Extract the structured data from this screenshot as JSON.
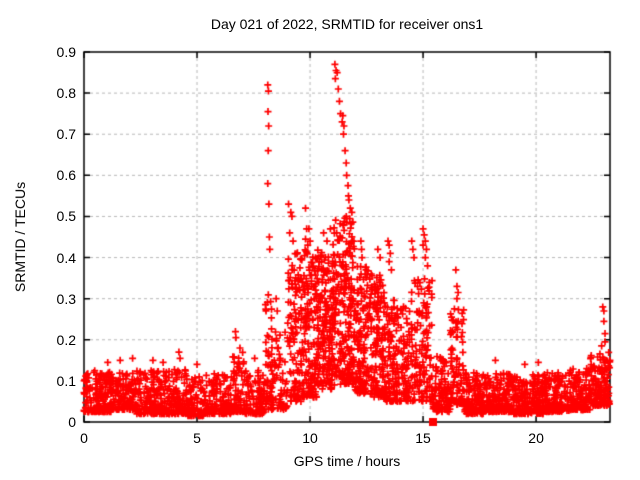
{
  "chart_data": {
    "type": "scatter",
    "title": "Day 021 of 2022, SRMTID for receiver ons1",
    "xlabel": "GPS time / hours",
    "ylabel": "SRMTID / TECUs",
    "xlim": [
      0,
      23.27
    ],
    "ylim": [
      0,
      0.9
    ],
    "xtick_values": [
      0,
      5,
      10,
      15,
      20
    ],
    "xtick_labels": [
      "0",
      "5",
      "10",
      "15",
      "20"
    ],
    "ytick_values": [
      0,
      0.1,
      0.2,
      0.3,
      0.4,
      0.5,
      0.6,
      0.7,
      0.8,
      0.9
    ],
    "ytick_labels": [
      "0",
      "0.1",
      "0.2",
      "0.3",
      "0.4",
      "0.5",
      "0.6",
      "0.7",
      "0.8",
      "0.9"
    ],
    "grid": {
      "on": true,
      "color": "#b8b8b8",
      "dash": [
        3,
        3
      ]
    },
    "legend": {
      "visible": false
    },
    "marker": {
      "shape": "plus",
      "color": "#ff0000",
      "size": 7,
      "stroke": 1.7
    },
    "border_color": "#000000",
    "background": "#ffffff",
    "point_generation": {
      "seed": 12345,
      "commentless_model": "x uniform in [x0,x1]; y = lo + (hi-lo)*u^k",
      "segments": [
        {
          "x0": 0.0,
          "x1": 1.2,
          "n": 170,
          "lo": 0.025,
          "hi": 0.125,
          "k": 2.0
        },
        {
          "x0": 1.2,
          "x1": 2.3,
          "n": 150,
          "lo": 0.03,
          "hi": 0.12,
          "k": 2.0
        },
        {
          "x0": 2.3,
          "x1": 3.5,
          "n": 150,
          "lo": 0.02,
          "hi": 0.125,
          "k": 2.0
        },
        {
          "x0": 3.5,
          "x1": 4.6,
          "n": 130,
          "lo": 0.02,
          "hi": 0.13,
          "k": 2.0
        },
        {
          "x0": 4.6,
          "x1": 5.4,
          "n": 90,
          "lo": 0.015,
          "hi": 0.11,
          "k": 2.0
        },
        {
          "x0": 5.4,
          "x1": 6.5,
          "n": 120,
          "lo": 0.02,
          "hi": 0.12,
          "k": 2.0
        },
        {
          "x0": 6.5,
          "x1": 7.1,
          "n": 70,
          "lo": 0.025,
          "hi": 0.17,
          "k": 2.0
        },
        {
          "x0": 7.1,
          "x1": 8.0,
          "n": 100,
          "lo": 0.02,
          "hi": 0.13,
          "k": 2.0
        },
        {
          "x0": 8.0,
          "x1": 8.3,
          "n": 45,
          "lo": 0.03,
          "hi": 0.33,
          "k": 1.6
        },
        {
          "x0": 8.3,
          "x1": 9.0,
          "n": 70,
          "lo": 0.03,
          "hi": 0.22,
          "k": 1.8
        },
        {
          "x0": 9.0,
          "x1": 9.6,
          "n": 110,
          "lo": 0.05,
          "hi": 0.42,
          "k": 1.5
        },
        {
          "x0": 9.6,
          "x1": 10.3,
          "n": 160,
          "lo": 0.06,
          "hi": 0.42,
          "k": 1.5
        },
        {
          "x0": 10.3,
          "x1": 11.0,
          "n": 170,
          "lo": 0.08,
          "hi": 0.42,
          "k": 1.4
        },
        {
          "x0": 11.0,
          "x1": 12.0,
          "n": 240,
          "lo": 0.09,
          "hi": 0.5,
          "k": 1.35
        },
        {
          "x0": 12.0,
          "x1": 12.6,
          "n": 130,
          "lo": 0.07,
          "hi": 0.38,
          "k": 1.5
        },
        {
          "x0": 12.6,
          "x1": 13.3,
          "n": 140,
          "lo": 0.06,
          "hi": 0.36,
          "k": 1.5
        },
        {
          "x0": 13.3,
          "x1": 14.3,
          "n": 170,
          "lo": 0.05,
          "hi": 0.3,
          "k": 1.6
        },
        {
          "x0": 14.3,
          "x1": 15.4,
          "n": 150,
          "lo": 0.05,
          "hi": 0.35,
          "k": 1.5
        },
        {
          "x0": 15.4,
          "x1": 16.2,
          "n": 110,
          "lo": 0.025,
          "hi": 0.16,
          "k": 1.8
        },
        {
          "x0": 16.2,
          "x1": 16.8,
          "n": 90,
          "lo": 0.04,
          "hi": 0.28,
          "k": 1.4
        },
        {
          "x0": 16.8,
          "x1": 17.8,
          "n": 140,
          "lo": 0.02,
          "hi": 0.12,
          "k": 2.0
        },
        {
          "x0": 17.8,
          "x1": 19.0,
          "n": 170,
          "lo": 0.025,
          "hi": 0.12,
          "k": 2.1
        },
        {
          "x0": 19.0,
          "x1": 20.3,
          "n": 180,
          "lo": 0.02,
          "hi": 0.115,
          "k": 2.1
        },
        {
          "x0": 20.3,
          "x1": 21.5,
          "n": 160,
          "lo": 0.025,
          "hi": 0.12,
          "k": 2.0
        },
        {
          "x0": 21.5,
          "x1": 22.4,
          "n": 130,
          "lo": 0.03,
          "hi": 0.13,
          "k": 1.9
        },
        {
          "x0": 22.4,
          "x1": 23.27,
          "n": 130,
          "lo": 0.04,
          "hi": 0.17,
          "k": 1.7
        }
      ],
      "outliers": [
        [
          1.05,
          0.145
        ],
        [
          1.6,
          0.15
        ],
        [
          2.15,
          0.155
        ],
        [
          3.05,
          0.15
        ],
        [
          3.5,
          0.145
        ],
        [
          4.2,
          0.17
        ],
        [
          4.25,
          0.155
        ],
        [
          5.0,
          0.14
        ],
        [
          6.7,
          0.22
        ],
        [
          6.72,
          0.205
        ],
        [
          6.9,
          0.18
        ],
        [
          7.55,
          0.155
        ],
        [
          8.13,
          0.82
        ],
        [
          8.16,
          0.805
        ],
        [
          8.14,
          0.755
        ],
        [
          8.17,
          0.72
        ],
        [
          8.15,
          0.66
        ],
        [
          8.13,
          0.58
        ],
        [
          8.18,
          0.53
        ],
        [
          8.2,
          0.45
        ],
        [
          8.22,
          0.42
        ],
        [
          8.5,
          0.3
        ],
        [
          8.55,
          0.27
        ],
        [
          9.05,
          0.53
        ],
        [
          9.15,
          0.51
        ],
        [
          9.2,
          0.5
        ],
        [
          9.1,
          0.46
        ],
        [
          9.25,
          0.44
        ],
        [
          9.8,
          0.52
        ],
        [
          9.85,
          0.47
        ],
        [
          9.8,
          0.445
        ],
        [
          9.9,
          0.43
        ],
        [
          9.95,
          0.47
        ],
        [
          10.0,
          0.44
        ],
        [
          10.6,
          0.46
        ],
        [
          10.75,
          0.44
        ],
        [
          10.9,
          0.47
        ],
        [
          11.1,
          0.87
        ],
        [
          11.15,
          0.855
        ],
        [
          11.2,
          0.85
        ],
        [
          11.12,
          0.835
        ],
        [
          11.25,
          0.81
        ],
        [
          11.3,
          0.78
        ],
        [
          11.35,
          0.75
        ],
        [
          11.45,
          0.745
        ],
        [
          11.42,
          0.73
        ],
        [
          11.5,
          0.72
        ],
        [
          11.48,
          0.7
        ],
        [
          11.55,
          0.66
        ],
        [
          11.6,
          0.63
        ],
        [
          11.62,
          0.6
        ],
        [
          11.68,
          0.575
        ],
        [
          11.7,
          0.55
        ],
        [
          11.72,
          0.54
        ],
        [
          11.78,
          0.52
        ],
        [
          11.85,
          0.51
        ],
        [
          12.25,
          0.44
        ],
        [
          12.28,
          0.42
        ],
        [
          12.3,
          0.4
        ],
        [
          13.0,
          0.42
        ],
        [
          13.1,
          0.4
        ],
        [
          13.45,
          0.44
        ],
        [
          13.5,
          0.43
        ],
        [
          13.55,
          0.41
        ],
        [
          13.5,
          0.39
        ],
        [
          13.6,
          0.37
        ],
        [
          14.5,
          0.44
        ],
        [
          14.55,
          0.42
        ],
        [
          14.6,
          0.4
        ],
        [
          15.0,
          0.47
        ],
        [
          15.05,
          0.455
        ],
        [
          15.1,
          0.44
        ],
        [
          15.0,
          0.43
        ],
        [
          15.15,
          0.42
        ],
        [
          15.1,
          0.4
        ],
        [
          15.2,
          0.38
        ],
        [
          16.45,
          0.37
        ],
        [
          16.5,
          0.33
        ],
        [
          16.55,
          0.315
        ],
        [
          16.5,
          0.3
        ],
        [
          18.2,
          0.15
        ],
        [
          19.5,
          0.14
        ],
        [
          20.1,
          0.145
        ],
        [
          22.95,
          0.28
        ],
        [
          23.0,
          0.27
        ],
        [
          23.0,
          0.245
        ],
        [
          23.05,
          0.215
        ],
        [
          23.05,
          0.195
        ],
        [
          22.9,
          0.185
        ]
      ],
      "special_points": [
        {
          "x": 15.44,
          "y": 0.0,
          "marker": "square",
          "color": "#ff0000",
          "size": 8
        }
      ]
    }
  }
}
